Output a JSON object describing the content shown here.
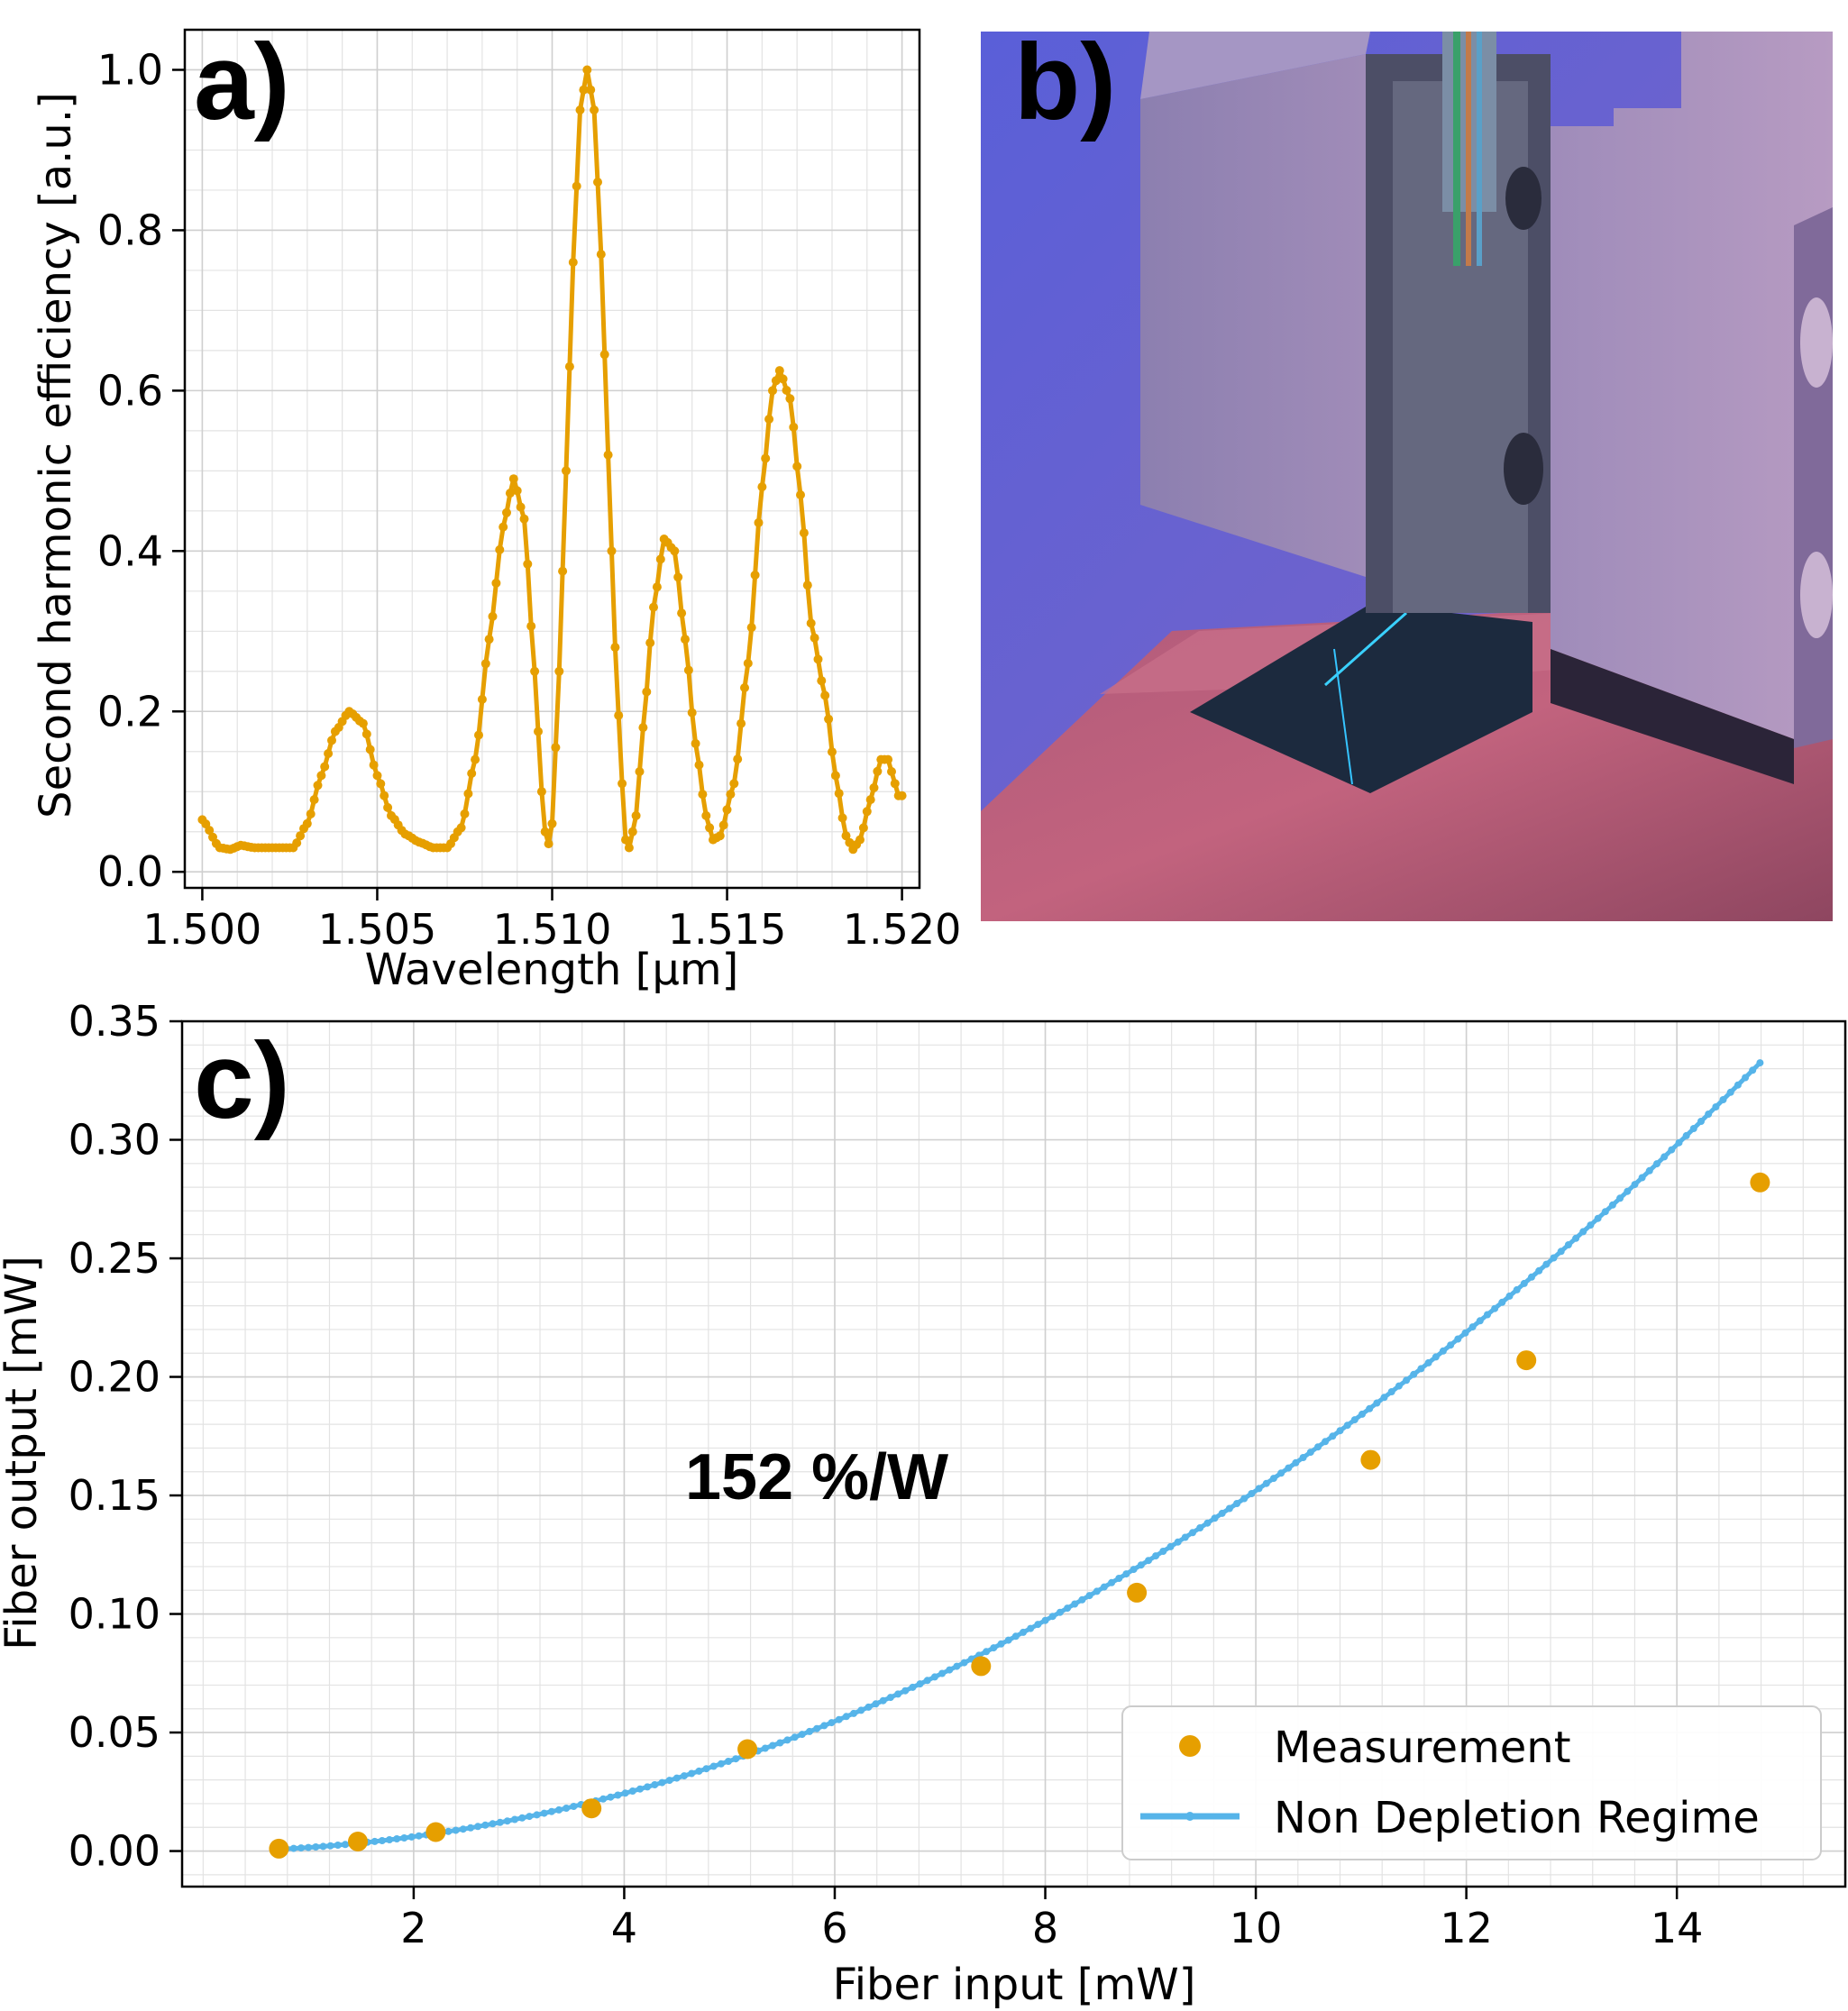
{
  "colors": {
    "measurement": "#E69F00",
    "model": "#56B4E9",
    "axis": "#000000"
  },
  "panels": {
    "a": {
      "label": "a)"
    },
    "b": {
      "label": "b)",
      "photo": "chip-in-metal-fixture-with-fiber-array"
    },
    "c": {
      "label": "c)"
    }
  },
  "chart_data": [
    {
      "id": "a",
      "type": "line",
      "xlabel": "Wavelength [µm]",
      "ylabel": "Second harmonic efficiency [a.u.]",
      "xlim": [
        1.4995,
        1.5205
      ],
      "ylim": [
        -0.02,
        1.05
      ],
      "xticks": [
        1.5,
        1.505,
        1.51,
        1.515,
        1.52
      ],
      "xtick_labels": [
        "1.500",
        "1.505",
        "1.510",
        "1.515",
        "1.520"
      ],
      "yticks": [
        0.0,
        0.2,
        0.4,
        0.6,
        0.8,
        1.0
      ],
      "ytick_labels": [
        "0.0",
        "0.2",
        "0.4",
        "0.6",
        "0.8",
        "1.0"
      ],
      "grid": true,
      "series": [
        {
          "marker": "dot",
          "x_range": [
            1.5,
            1.52,
            0.0001
          ],
          "keypoints": [
            [
              1.5,
              0.065
            ],
            [
              1.5005,
              0.03
            ],
            [
              1.5008,
              0.028
            ],
            [
              1.5011,
              0.033
            ],
            [
              1.5015,
              0.03
            ],
            [
              1.502,
              0.03
            ],
            [
              1.5026,
              0.03
            ],
            [
              1.503,
              0.06
            ],
            [
              1.5034,
              0.12
            ],
            [
              1.5038,
              0.175
            ],
            [
              1.5042,
              0.2
            ],
            [
              1.5046,
              0.185
            ],
            [
              1.505,
              0.12
            ],
            [
              1.5054,
              0.07
            ],
            [
              1.5058,
              0.047
            ],
            [
              1.5062,
              0.037
            ],
            [
              1.5066,
              0.03
            ],
            [
              1.507,
              0.03
            ],
            [
              1.5074,
              0.055
            ],
            [
              1.5078,
              0.14
            ],
            [
              1.5082,
              0.29
            ],
            [
              1.5086,
              0.43
            ],
            [
              1.5089,
              0.49
            ],
            [
              1.5092,
              0.44
            ],
            [
              1.5095,
              0.25
            ],
            [
              1.5097,
              0.1
            ],
            [
              1.5098,
              0.05
            ],
            [
              1.5099,
              0.035
            ],
            [
              1.51,
              0.06
            ],
            [
              1.5102,
              0.25
            ],
            [
              1.5104,
              0.5
            ],
            [
              1.5106,
              0.76
            ],
            [
              1.5108,
              0.95
            ],
            [
              1.511,
              1.0
            ],
            [
              1.5112,
              0.95
            ],
            [
              1.5114,
              0.77
            ],
            [
              1.5116,
              0.52
            ],
            [
              1.5118,
              0.28
            ],
            [
              1.512,
              0.11
            ],
            [
              1.5121,
              0.04
            ],
            [
              1.5122,
              0.03
            ],
            [
              1.5124,
              0.07
            ],
            [
              1.5126,
              0.18
            ],
            [
              1.5129,
              0.33
            ],
            [
              1.5132,
              0.415
            ],
            [
              1.5135,
              0.4
            ],
            [
              1.5138,
              0.29
            ],
            [
              1.5141,
              0.16
            ],
            [
              1.5144,
              0.07
            ],
            [
              1.5146,
              0.04
            ],
            [
              1.5148,
              0.045
            ],
            [
              1.5152,
              0.11
            ],
            [
              1.5156,
              0.26
            ],
            [
              1.516,
              0.48
            ],
            [
              1.5163,
              0.6
            ],
            [
              1.5165,
              0.625
            ],
            [
              1.5168,
              0.59
            ],
            [
              1.5171,
              0.47
            ],
            [
              1.5174,
              0.31
            ],
            [
              1.5178,
              0.22
            ],
            [
              1.5181,
              0.12
            ],
            [
              1.5184,
              0.045
            ],
            [
              1.5186,
              0.028
            ],
            [
              1.5188,
              0.04
            ],
            [
              1.5191,
              0.09
            ],
            [
              1.5194,
              0.14
            ],
            [
              1.5196,
              0.14
            ],
            [
              1.5198,
              0.11
            ],
            [
              1.5199,
              0.095
            ]
          ]
        }
      ]
    },
    {
      "id": "c",
      "type": "scatter",
      "xlabel": "Fiber input [mW]",
      "ylabel": "Fiber output [mW]",
      "xlim": [
        -0.2,
        15.6
      ],
      "ylim": [
        -0.015,
        0.35
      ],
      "xticks": [
        2,
        4,
        6,
        8,
        10,
        12,
        14
      ],
      "xtick_labels": [
        "2",
        "4",
        "6",
        "8",
        "10",
        "12",
        "14"
      ],
      "yticks": [
        0.0,
        0.05,
        0.1,
        0.15,
        0.2,
        0.25,
        0.3,
        0.35
      ],
      "ytick_labels": [
        "0.00",
        "0.05",
        "0.10",
        "0.15",
        "0.20",
        "0.25",
        "0.30",
        "0.35"
      ],
      "grid": true,
      "legend_position": "bottom-right",
      "annotation": "152 %/W",
      "series": [
        {
          "name": "Measurement",
          "type": "scatter",
          "x": [
            0.72,
            1.47,
            2.21,
            3.69,
            5.17,
            7.39,
            8.87,
            11.09,
            12.57,
            14.79
          ],
          "y": [
            0.001,
            0.004,
            0.008,
            0.018,
            0.043,
            0.078,
            0.109,
            0.165,
            0.207,
            0.282
          ]
        },
        {
          "name": "Non Depletion Regime",
          "type": "line",
          "model": "y = 0.00152 * x^2",
          "x_range": [
            0.72,
            14.79,
            0.07
          ]
        }
      ]
    }
  ]
}
